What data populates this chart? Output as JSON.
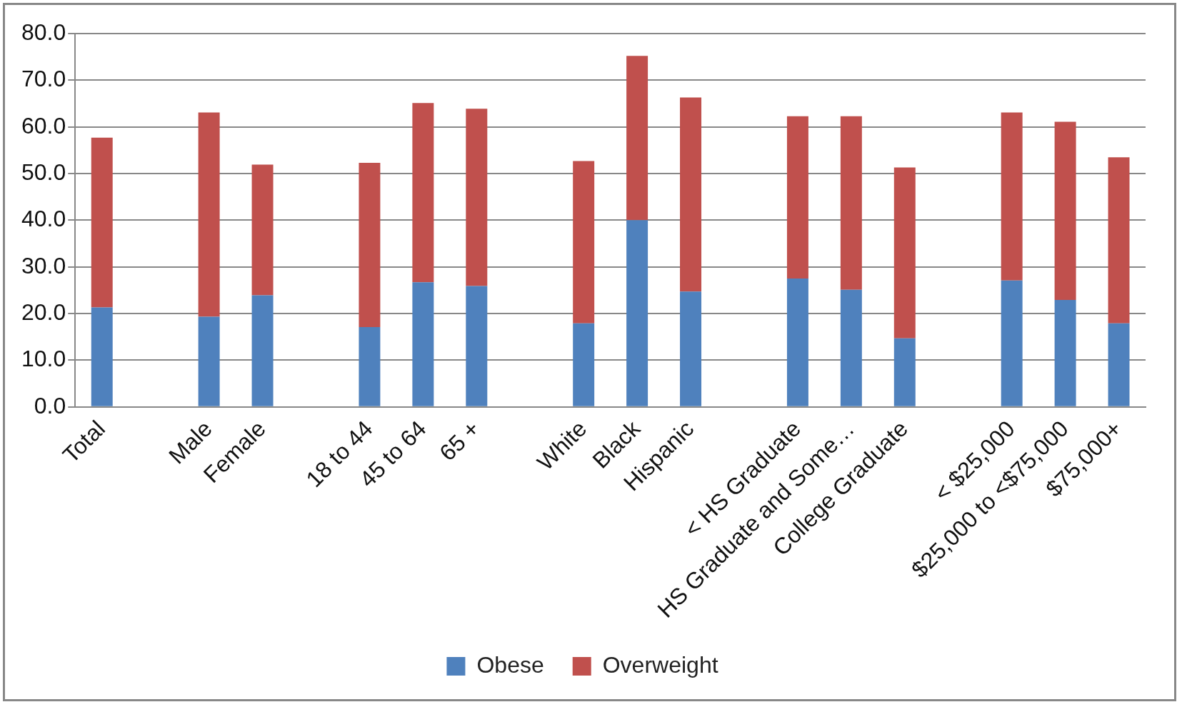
{
  "chart_data": {
    "type": "bar",
    "stacked": true,
    "categories": [
      "Total",
      null,
      "Male",
      "Female",
      null,
      "18 to 44",
      "45 to 64",
      "65 +",
      null,
      "White",
      "Black",
      "Hispanic",
      null,
      "< HS Graduate",
      "HS Graduate and Some…",
      "College Graduate",
      null,
      "< $25,000",
      "$25,000 to <$75,000",
      "$75,000+"
    ],
    "series": [
      {
        "name": "Obese",
        "color": "#4f81bd",
        "values": [
          21.3,
          null,
          19.3,
          23.9,
          null,
          17.1,
          26.7,
          25.9,
          null,
          17.9,
          40.0,
          24.7,
          null,
          27.5,
          25.1,
          14.7,
          null,
          27.1,
          22.9,
          17.9
        ]
      },
      {
        "name": "Overweight",
        "color": "#c0504d",
        "values": [
          36.4,
          null,
          43.8,
          28.0,
          null,
          35.2,
          38.4,
          38.0,
          null,
          34.8,
          35.2,
          41.6,
          null,
          34.8,
          37.2,
          36.6,
          null,
          36.0,
          38.2,
          35.6
        ]
      }
    ],
    "ylim": [
      0,
      80
    ],
    "yticks": [
      {
        "value": 0,
        "label": "0.0"
      },
      {
        "value": 10,
        "label": "10.0"
      },
      {
        "value": 20,
        "label": "20.0"
      },
      {
        "value": 30,
        "label": "30.0"
      },
      {
        "value": 40,
        "label": "40.0"
      },
      {
        "value": 50,
        "label": "50.0"
      },
      {
        "value": 60,
        "label": "60.0"
      },
      {
        "value": 70,
        "label": "70.0"
      },
      {
        "value": 80,
        "label": "80.0"
      }
    ],
    "grid": "y",
    "legend": "bottom"
  }
}
